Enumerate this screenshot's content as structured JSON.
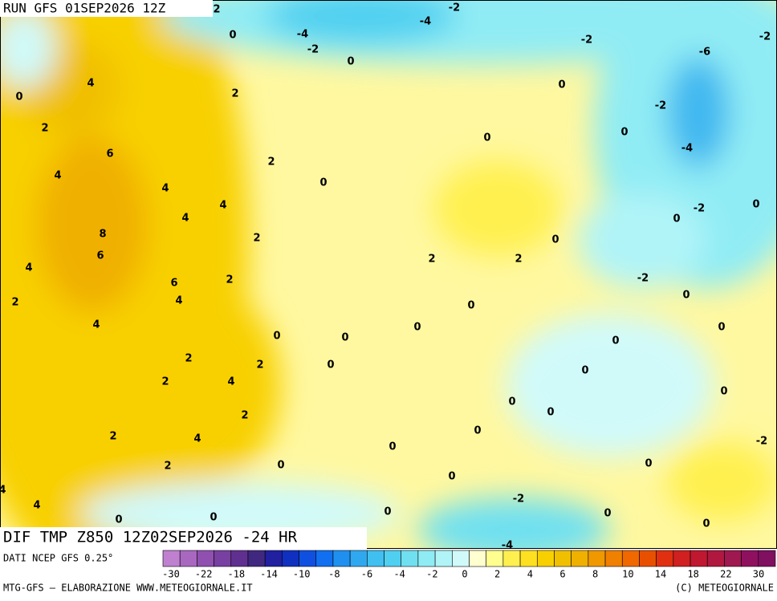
{
  "header": {
    "run": "RUN GFS 01SEP2026 12Z",
    "field": "DIF TMP Z850 12Z02SEP2026 -24 HR"
  },
  "legend": {
    "source": "DATI NCEP GFS 0.25°",
    "colors": [
      "#c080d0",
      "#a868c0",
      "#9050b0",
      "#7840a0",
      "#603090",
      "#402880",
      "#2020a0",
      "#1030c0",
      "#1050e0",
      "#1070f0",
      "#2090f0",
      "#30a8f0",
      "#40c0f0",
      "#50d0f0",
      "#70e0f0",
      "#90ecf4",
      "#b0f4f8",
      "#d0fafa",
      "#ffffd0",
      "#ffff90",
      "#fff050",
      "#ffe020",
      "#f8d000",
      "#f0c000",
      "#f0b000",
      "#f09800",
      "#f08000",
      "#f06800",
      "#e85000",
      "#e03010",
      "#d02020",
      "#c01830",
      "#b01840",
      "#a01850",
      "#901060",
      "#801060"
    ],
    "labels": [
      -30,
      -22,
      -18,
      -14,
      -10,
      -8,
      -6,
      -4,
      -2,
      0,
      2,
      4,
      6,
      8,
      10,
      14,
      18,
      22,
      30
    ]
  },
  "footer": {
    "credit": "MTG-GFS — ELABORAZIONE WWW.METEOGIORNALE.IT",
    "copyright": "(C) METEOGIORNALE"
  },
  "map": {
    "contour_labels": [
      2,
      -2,
      -4,
      -4,
      0,
      -2,
      0,
      -2,
      -6,
      -2,
      4,
      0,
      2,
      0,
      -2,
      2,
      6,
      0,
      0,
      -4,
      4,
      2,
      0,
      4,
      4,
      4,
      -2,
      0,
      0,
      8,
      2,
      0,
      6,
      2,
      2,
      4,
      2,
      6,
      -2,
      2,
      4,
      0,
      0,
      4,
      0,
      0,
      0,
      0,
      2,
      2,
      0,
      0,
      2,
      4,
      0,
      0,
      0,
      0,
      2,
      0,
      2,
      4,
      0,
      -2,
      2,
      0,
      0,
      0,
      4,
      4,
      -2,
      0,
      0,
      0,
      0,
      0,
      -4
    ]
  }
}
